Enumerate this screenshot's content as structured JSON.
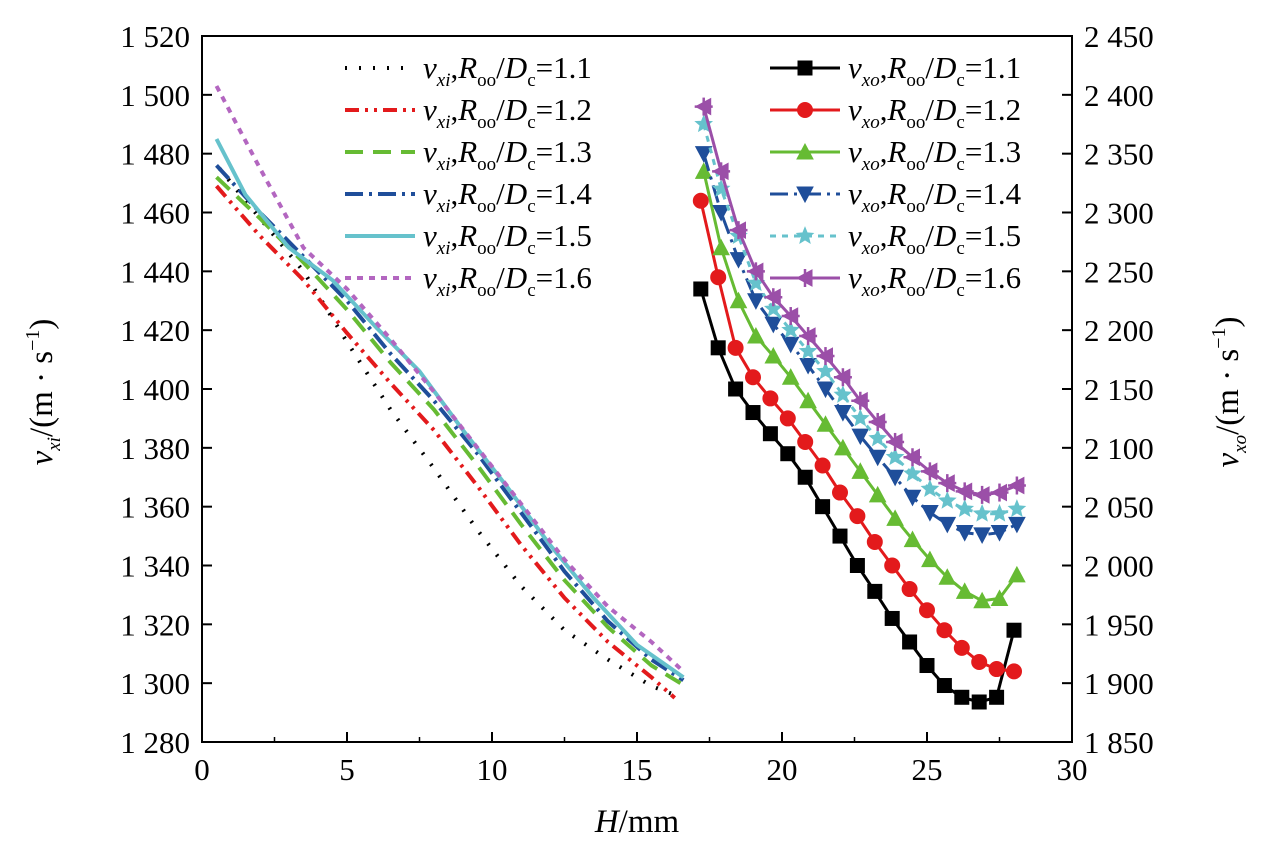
{
  "chart_data": {
    "type": "line",
    "title": "",
    "xlabel": {
      "var": "H",
      "unit": "/mm"
    },
    "ylabel_left": {
      "var": "v",
      "sub": "xi",
      "unit": "/(m · s",
      "exp": "−1",
      "close": ")"
    },
    "ylabel_right": {
      "var": "v",
      "sub": "xo",
      "unit": "/(m · s",
      "exp": "−1",
      "close": ")"
    },
    "xlim": [
      0,
      30
    ],
    "ylim_left": [
      1280,
      1520
    ],
    "ylim_right": [
      1850,
      2450
    ],
    "x_ticks": [
      0,
      5,
      10,
      15,
      20,
      25,
      30
    ],
    "x_tick_labels": [
      "0",
      "5",
      "10",
      "15",
      "20",
      "25",
      "30"
    ],
    "y_left_ticks": [
      1280,
      1300,
      1320,
      1340,
      1360,
      1380,
      1400,
      1420,
      1440,
      1460,
      1480,
      1500,
      1520
    ],
    "y_left_tick_labels": [
      "1 280",
      "1 300",
      "1 320",
      "1 340",
      "1 360",
      "1 380",
      "1 400",
      "1 420",
      "1 440",
      "1 460",
      "1 480",
      "1 500",
      "1 520"
    ],
    "y_right_ticks": [
      1850,
      1900,
      1950,
      2000,
      2050,
      2100,
      2150,
      2200,
      2250,
      2300,
      2350,
      2400,
      2450
    ],
    "y_right_tick_labels": [
      "1 850",
      "1 900",
      "1 950",
      "2 000",
      "2 050",
      "2 100",
      "2 150",
      "2 200",
      "2 250",
      "2 300",
      "2 350",
      "2 400",
      "2 450"
    ],
    "grid": false,
    "legend_left_position": "top-center-left",
    "legend_right_position": "top-right",
    "series": [
      {
        "name": "v_xi, R_oo/D_c=1.1",
        "sub": "xi",
        "ratio": "1.1",
        "axis": "left",
        "color": "#000000",
        "dash": "2 12",
        "marker": "none",
        "x": [
          0.6,
          2.0,
          3.5,
          5.0,
          6.5,
          8.0,
          9.5,
          11.0,
          12.5,
          14.0,
          15.5,
          16.3
        ],
        "y": [
          1475,
          1458,
          1440,
          1416,
          1393,
          1373,
          1352,
          1333,
          1318,
          1308,
          1299,
          1296
        ]
      },
      {
        "name": "v_xi, R_oo/D_c=1.2",
        "sub": "xi",
        "ratio": "1.2",
        "axis": "left",
        "color": "#e31a1c",
        "dash": "14 6 3 6 3 6",
        "marker": "none",
        "x": [
          0.5,
          2.0,
          3.5,
          5.0,
          6.5,
          8.0,
          9.5,
          11.0,
          12.5,
          14.0,
          15.5,
          16.3
        ],
        "y": [
          1469,
          1452,
          1437,
          1419,
          1402,
          1386,
          1367,
          1347,
          1329,
          1314,
          1302,
          1295
        ]
      },
      {
        "name": "v_xi, R_oo/D_c=1.3",
        "sub": "xi",
        "ratio": "1.3",
        "axis": "left",
        "color": "#66bb33",
        "dash": "18 10",
        "marker": "none",
        "x": [
          0.5,
          2.0,
          3.5,
          5.0,
          6.5,
          8.0,
          9.5,
          11.0,
          12.5,
          14.0,
          15.5,
          16.5
        ],
        "y": [
          1472,
          1458,
          1443,
          1427,
          1409,
          1393,
          1374,
          1354,
          1335,
          1319,
          1306,
          1300
        ]
      },
      {
        "name": "v_xi, R_oo/D_c=1.4",
        "sub": "xi",
        "ratio": "1.4",
        "axis": "left",
        "color": "#1f4e9a",
        "dash": "18 6 3 6",
        "marker": "none",
        "x": [
          0.5,
          2.0,
          3.5,
          5.0,
          6.5,
          8.0,
          9.5,
          11.0,
          12.5,
          14.0,
          15.5,
          16.6
        ],
        "y": [
          1476,
          1460,
          1445,
          1430,
          1412,
          1396,
          1378,
          1358,
          1338,
          1321,
          1308,
          1301
        ]
      },
      {
        "name": "v_xi, R_oo/D_c=1.5",
        "sub": "xi",
        "ratio": "1.5",
        "axis": "left",
        "color": "#66c2cc",
        "dash": "none",
        "marker": "none",
        "x": [
          0.5,
          1.5,
          3.0,
          4.5,
          6.0,
          7.5,
          9.0,
          10.5,
          12.0,
          13.5,
          15.0,
          16.6
        ],
        "y": [
          1485,
          1466,
          1448,
          1437,
          1421,
          1406,
          1386,
          1367,
          1347,
          1329,
          1313,
          1302
        ]
      },
      {
        "name": "v_xi, R_oo/D_c=1.6",
        "sub": "xi",
        "ratio": "1.6",
        "axis": "left",
        "color": "#b366c0",
        "dash": "6 6",
        "marker": "none",
        "x": [
          0.5,
          2.0,
          3.5,
          5.0,
          6.5,
          8.0,
          9.5,
          11.0,
          12.5,
          14.0,
          15.5,
          16.6
        ],
        "y": [
          1503,
          1475,
          1448,
          1434,
          1417,
          1399,
          1380,
          1361,
          1342,
          1326,
          1314,
          1304
        ]
      },
      {
        "name": "v_xo, R_oo/D_c=1.1",
        "sub": "xo",
        "ratio": "1.1",
        "axis": "right",
        "color": "#000000",
        "dash": "none",
        "marker": "square",
        "x": [
          17.2,
          17.8,
          18.4,
          19.0,
          19.6,
          20.2,
          20.8,
          21.4,
          22.0,
          22.6,
          23.2,
          23.8,
          24.4,
          25.0,
          25.6,
          26.2,
          26.8,
          27.4,
          28.0
        ],
        "y": [
          2235,
          2185,
          2150,
          2130,
          2112,
          2095,
          2075,
          2050,
          2025,
          2000,
          1978,
          1955,
          1935,
          1915,
          1898,
          1888,
          1884,
          1888,
          1945
        ]
      },
      {
        "name": "v_xo, R_oo/D_c=1.2",
        "sub": "xo",
        "ratio": "1.2",
        "axis": "right",
        "color": "#e31a1c",
        "dash": "none",
        "marker": "circle",
        "x": [
          17.2,
          17.8,
          18.4,
          19.0,
          19.6,
          20.2,
          20.8,
          21.4,
          22.0,
          22.6,
          23.2,
          23.8,
          24.4,
          25.0,
          25.6,
          26.2,
          26.8,
          27.4,
          28.0
        ],
        "y": [
          2310,
          2245,
          2185,
          2160,
          2142,
          2125,
          2105,
          2085,
          2062,
          2042,
          2020,
          2000,
          1980,
          1962,
          1945,
          1930,
          1918,
          1912,
          1910
        ]
      },
      {
        "name": "v_xo, R_oo/D_c=1.3",
        "sub": "xo",
        "ratio": "1.3",
        "axis": "right",
        "color": "#66bb33",
        "dash": "none",
        "marker": "triangle-up",
        "x": [
          17.3,
          17.9,
          18.5,
          19.1,
          19.7,
          20.3,
          20.9,
          21.5,
          22.1,
          22.7,
          23.3,
          23.9,
          24.5,
          25.1,
          25.7,
          26.3,
          26.9,
          27.5,
          28.1
        ],
        "y": [
          2335,
          2270,
          2225,
          2195,
          2178,
          2160,
          2140,
          2120,
          2100,
          2080,
          2060,
          2040,
          2022,
          2005,
          1990,
          1978,
          1970,
          1972,
          1992
        ]
      },
      {
        "name": "v_xo, R_oo/D_c=1.4",
        "sub": "xo",
        "ratio": "1.4",
        "axis": "right",
        "color": "#1f4e9a",
        "dash": "18 6 3 6",
        "marker": "triangle-down",
        "x": [
          17.3,
          17.9,
          18.5,
          19.1,
          19.7,
          20.3,
          20.9,
          21.5,
          22.1,
          22.7,
          23.3,
          23.9,
          24.5,
          25.1,
          25.7,
          26.3,
          26.9,
          27.5,
          28.1
        ],
        "y": [
          2350,
          2300,
          2260,
          2225,
          2205,
          2188,
          2170,
          2150,
          2130,
          2110,
          2092,
          2075,
          2058,
          2045,
          2035,
          2028,
          2026,
          2028,
          2035
        ]
      },
      {
        "name": "v_xo, R_oo/D_c=1.5",
        "sub": "xo",
        "ratio": "1.5",
        "axis": "right",
        "color": "#66c2cc",
        "dash": "6 6",
        "marker": "star",
        "x": [
          17.3,
          17.9,
          18.5,
          19.1,
          19.7,
          20.3,
          20.9,
          21.5,
          22.1,
          22.7,
          23.3,
          23.9,
          24.5,
          25.1,
          25.7,
          26.3,
          26.9,
          27.5,
          28.1
        ],
        "y": [
          2375,
          2320,
          2280,
          2240,
          2218,
          2200,
          2182,
          2165,
          2145,
          2125,
          2108,
          2092,
          2078,
          2065,
          2055,
          2048,
          2044,
          2044,
          2048
        ]
      },
      {
        "name": "v_xo, R_oo/D_c=1.6",
        "sub": "xo",
        "ratio": "1.6",
        "axis": "right",
        "color": "#9b4fa8",
        "dash": "none",
        "marker": "triangle-left",
        "x": [
          17.3,
          17.9,
          18.5,
          19.1,
          19.7,
          20.3,
          20.9,
          21.5,
          22.1,
          22.7,
          23.3,
          23.9,
          24.5,
          25.1,
          25.7,
          26.3,
          26.9,
          27.5,
          28.1
        ],
        "y": [
          2390,
          2335,
          2285,
          2250,
          2228,
          2212,
          2195,
          2178,
          2160,
          2140,
          2122,
          2105,
          2092,
          2080,
          2070,
          2063,
          2060,
          2062,
          2068
        ]
      }
    ]
  }
}
